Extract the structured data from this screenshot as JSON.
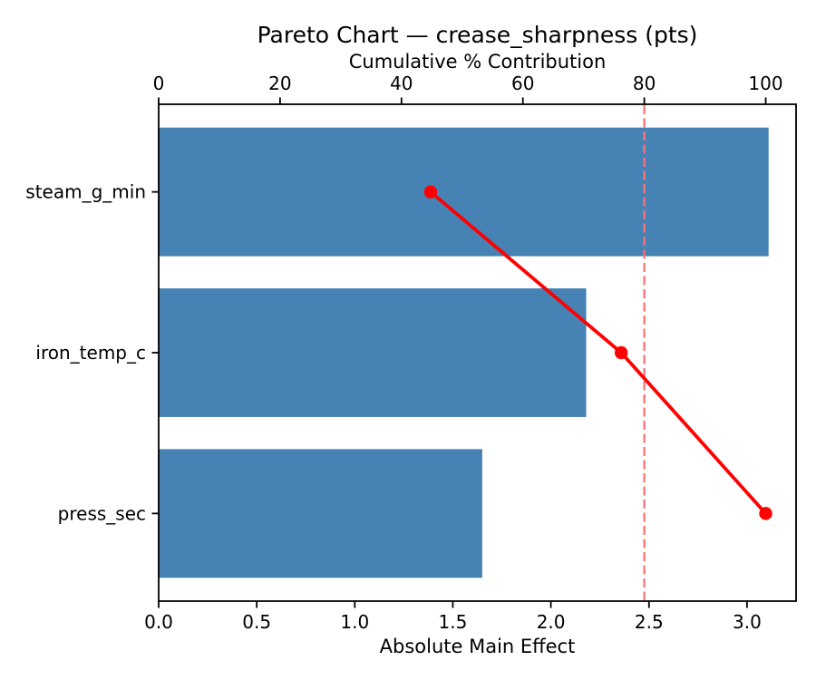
{
  "figure": {
    "title": "Pareto Chart — crease_sharpness (pts)"
  },
  "chart_data": {
    "type": "bar",
    "subtype": "pareto",
    "orientation": "horizontal",
    "title": "Pareto Chart — crease_sharpness (pts)",
    "categories": [
      "steam_g_min",
      "iron_temp_c",
      "press_sec"
    ],
    "bar_values": [
      3.11,
      2.18,
      1.65
    ],
    "cumulative_pct": [
      44.8,
      76.2,
      100.0
    ],
    "threshold_pct": 80,
    "top_axis": {
      "label": "Cumulative % Contribution",
      "ticks": [
        0,
        20,
        40,
        60,
        80,
        100
      ],
      "xlim": [
        0,
        105
      ]
    },
    "bottom_axis": {
      "label": "Absolute Main Effect",
      "ticks": [
        "0.0",
        "0.5",
        "1.0",
        "1.5",
        "2.0",
        "2.5",
        "3.0"
      ],
      "xlim": [
        0,
        3.25
      ]
    },
    "bar_height_frac": 0.8,
    "grid": false,
    "legend": null,
    "colors": {
      "bar": "#4682B4",
      "line": "#ff0000",
      "marker": "#ff0000",
      "threshold": "#ff7272",
      "spine": "#000000",
      "text": "#000000",
      "background": "#ffffff"
    }
  }
}
